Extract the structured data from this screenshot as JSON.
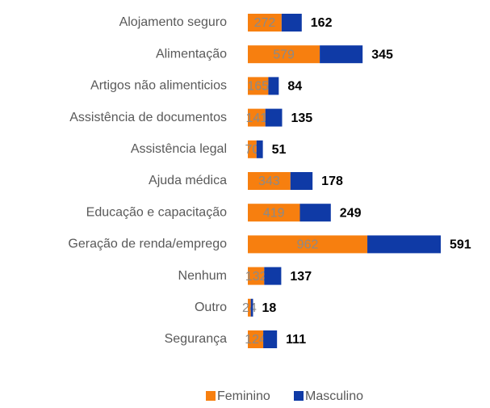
{
  "chart_data": {
    "type": "stacked_barh",
    "categories": [
      "Alojamento seguro",
      "Alimentação",
      "Artigos não alimenticios",
      "Assistência de documentos",
      "Assistência legal",
      "Ajuda médica",
      "Educação e capacitação",
      "Geração de renda/emprego",
      "Nenhum",
      "Outro",
      "Segurança"
    ],
    "series": [
      {
        "name": "Feminino",
        "color": "#f77f0f",
        "values": [
          272,
          579,
          165,
          141,
          70,
          343,
          419,
          962,
          132,
          24,
          124
        ]
      },
      {
        "name": "Masculino",
        "color": "#0f3aa6",
        "values": [
          162,
          345,
          84,
          135,
          51,
          178,
          249,
          591,
          137,
          18,
          111
        ]
      }
    ],
    "legend": "bottom"
  }
}
